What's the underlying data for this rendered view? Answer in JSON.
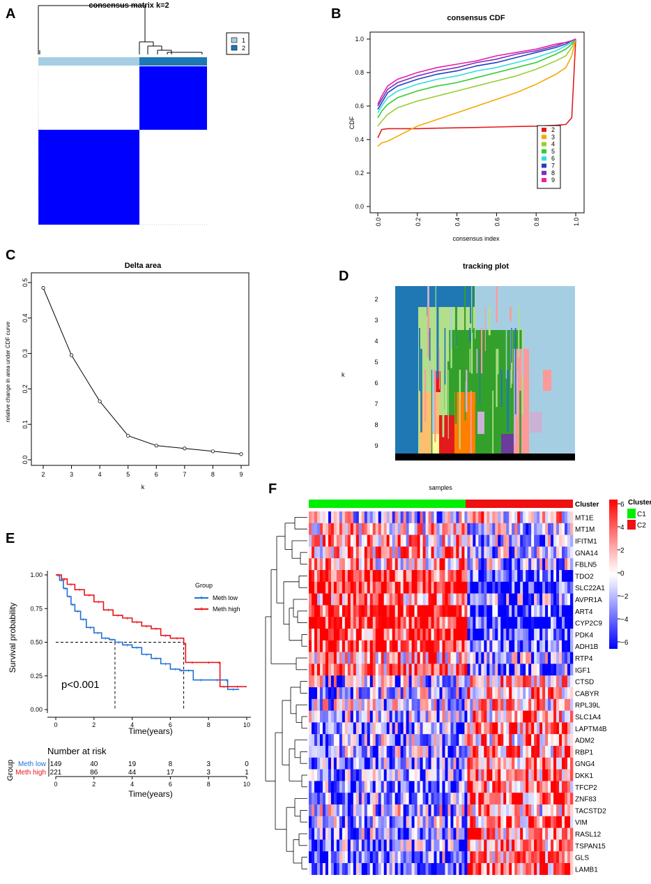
{
  "colors": {
    "consensus_blue": "#0000ff",
    "cluster1": "#a6cee3",
    "cluster2": "#1f78b4",
    "km_low": "#1f6fd6",
    "km_high": "#e8141c",
    "annot_C1": "#00ee00",
    "annot_C2": "#ee1111"
  },
  "panels": {
    "A": {
      "label": "A",
      "title": "consensus matrix k=2",
      "legend": [
        "1",
        "2"
      ]
    },
    "B": {
      "label": "B",
      "chart_data": {
        "type": "line",
        "title": "consensus CDF",
        "xlabel": "consensus index",
        "ylabel": "CDF",
        "xlim": [
          0,
          1
        ],
        "ylim": [
          0,
          1
        ],
        "xticks": [
          "0.0",
          "0.2",
          "0.4",
          "0.6",
          "0.8",
          "1.0"
        ],
        "yticks": [
          "0.0",
          "0.2",
          "0.4",
          "0.6",
          "0.8",
          "1.0"
        ],
        "x": [
          0,
          0.02,
          0.05,
          0.1,
          0.2,
          0.3,
          0.4,
          0.5,
          0.6,
          0.7,
          0.8,
          0.9,
          0.95,
          0.98,
          1.0
        ],
        "series": [
          {
            "name": "2",
            "color": "#e31a1c",
            "values": [
              0.41,
              0.46,
              0.465,
              0.465,
              0.465,
              0.468,
              0.47,
              0.472,
              0.475,
              0.478,
              0.48,
              0.485,
              0.49,
              0.53,
              1.0
            ]
          },
          {
            "name": "3",
            "color": "#f4a800",
            "values": [
              0.36,
              0.38,
              0.39,
              0.42,
              0.48,
              0.52,
              0.56,
              0.6,
              0.64,
              0.68,
              0.73,
              0.79,
              0.83,
              0.9,
              1.0
            ]
          },
          {
            "name": "4",
            "color": "#9acd32",
            "values": [
              0.48,
              0.51,
              0.55,
              0.59,
              0.63,
              0.66,
              0.69,
              0.72,
              0.75,
              0.78,
              0.82,
              0.87,
              0.9,
              0.95,
              1.0
            ]
          },
          {
            "name": "5",
            "color": "#33cc33",
            "values": [
              0.53,
              0.57,
              0.61,
              0.65,
              0.69,
              0.72,
              0.74,
              0.77,
              0.8,
              0.83,
              0.86,
              0.91,
              0.94,
              0.97,
              1.0
            ]
          },
          {
            "name": "6",
            "color": "#33dddd",
            "values": [
              0.56,
              0.6,
              0.65,
              0.69,
              0.73,
              0.76,
              0.78,
              0.81,
              0.83,
              0.86,
              0.89,
              0.93,
              0.96,
              0.98,
              1.0
            ]
          },
          {
            "name": "7",
            "color": "#1f3fbf",
            "values": [
              0.58,
              0.62,
              0.68,
              0.72,
              0.76,
              0.79,
              0.81,
              0.84,
              0.86,
              0.89,
              0.92,
              0.95,
              0.97,
              0.99,
              1.0
            ]
          },
          {
            "name": "8",
            "color": "#7b2fbe",
            "values": [
              0.6,
              0.64,
              0.7,
              0.74,
              0.78,
              0.81,
              0.83,
              0.86,
              0.88,
              0.91,
              0.93,
              0.96,
              0.98,
              0.99,
              1.0
            ]
          },
          {
            "name": "9",
            "color": "#e61fa8",
            "values": [
              0.61,
              0.66,
              0.72,
              0.76,
              0.8,
              0.83,
              0.85,
              0.87,
              0.9,
              0.92,
              0.94,
              0.97,
              0.98,
              0.99,
              1.0
            ]
          }
        ]
      }
    },
    "C": {
      "label": "C",
      "chart_data": {
        "type": "line",
        "title": "Delta area",
        "xlabel": "k",
        "ylabel": "relative change in area under CDF curve",
        "xlim": [
          2,
          9
        ],
        "ylim": [
          0,
          0.5
        ],
        "xticks": [
          "2",
          "3",
          "4",
          "5",
          "6",
          "7",
          "8",
          "9"
        ],
        "yticks": [
          "0.0",
          "0.1",
          "0.2",
          "0.3",
          "0.4",
          "0.5"
        ],
        "x": [
          2,
          3,
          4,
          5,
          6,
          7,
          8,
          9
        ],
        "values": [
          0.485,
          0.295,
          0.165,
          0.068,
          0.04,
          0.032,
          0.024,
          0.016
        ]
      }
    },
    "D": {
      "label": "D",
      "title": "tracking plot",
      "ylabel": "k",
      "rows": [
        "2",
        "3",
        "4",
        "5",
        "6",
        "7",
        "8",
        "9"
      ]
    },
    "E": {
      "label": "E",
      "chart_data": {
        "type": "line",
        "xlabel": "Time(years)",
        "ylabel": "Survival probability",
        "xlim": [
          0,
          10
        ],
        "ylim": [
          0,
          1
        ],
        "xticks": [
          "0",
          "2",
          "4",
          "6",
          "8",
          "10"
        ],
        "yticks": [
          "0.00",
          "0.25",
          "0.50",
          "0.75",
          "1.00"
        ],
        "legend_title": "Group",
        "pvalue": "p<0.001",
        "series": [
          {
            "name": "Meth low",
            "color": "#1f6fd6",
            "x": [
              0,
              0.2,
              0.4,
              0.6,
              0.8,
              1.0,
              1.3,
              1.6,
              2.0,
              2.4,
              2.8,
              3.1,
              3.5,
              4.0,
              4.5,
              5.0,
              5.5,
              6.0,
              6.5,
              6.7,
              7.2,
              8.0,
              8.9,
              9.0,
              9.6
            ],
            "values": [
              1.0,
              0.96,
              0.9,
              0.84,
              0.78,
              0.73,
              0.67,
              0.61,
              0.57,
              0.53,
              0.52,
              0.5,
              0.48,
              0.46,
              0.41,
              0.38,
              0.34,
              0.3,
              0.29,
              0.29,
              0.22,
              0.22,
              0.22,
              0.15,
              0.15
            ]
          },
          {
            "name": "Meth high",
            "color": "#e8141c",
            "x": [
              0,
              0.3,
              0.6,
              1.0,
              1.5,
              2.0,
              2.5,
              3.0,
              3.5,
              4.0,
              4.5,
              5.0,
              5.5,
              6.0,
              6.7,
              6.8,
              7.5,
              8.5,
              8.6,
              9.0,
              10.0
            ],
            "values": [
              1.0,
              0.97,
              0.93,
              0.89,
              0.85,
              0.8,
              0.74,
              0.7,
              0.68,
              0.65,
              0.62,
              0.6,
              0.55,
              0.53,
              0.49,
              0.35,
              0.35,
              0.35,
              0.17,
              0.17,
              0.17
            ]
          }
        ],
        "median_lines": [
          {
            "x": 3.1
          },
          {
            "x": 6.7
          }
        ],
        "risk_table": {
          "title": "Number at risk",
          "group_label": "Group",
          "xlabel": "Time(years)",
          "times": [
            "0",
            "2",
            "4",
            "6",
            "8",
            "10"
          ],
          "rows": [
            {
              "name": "Meth low",
              "counts": [
                "149",
                "40",
                "19",
                "8",
                "3",
                "0"
              ]
            },
            {
              "name": "Meth high",
              "counts": [
                "221",
                "86",
                "44",
                "17",
                "3",
                "1"
              ]
            }
          ]
        }
      }
    },
    "F": {
      "label": "F",
      "chart_data": {
        "type": "heatmap",
        "title": "samples",
        "annotation_label": "Cluster",
        "annotation_groups": [
          "C1",
          "C2"
        ],
        "genes": [
          "MT1E",
          "MT1M",
          "IFITM1",
          "GNA14",
          "FBLN5",
          "TDO2",
          "SLC22A1",
          "AVPR1A",
          "ART4",
          "CYP2C9",
          "PDK4",
          "ADH1B",
          "RTP4",
          "IGF1",
          "CTSD",
          "CABYR",
          "RPL39L",
          "SLC1A4",
          "LAPTM4B",
          "ADM2",
          "RBP1",
          "GNG4",
          "DKK1",
          "TFCP2",
          "ZNF83",
          "TACSTD2",
          "VIM",
          "RASL12",
          "TSPAN15",
          "GLS",
          "LAMB1"
        ],
        "gene_bias_C1": [
          -0.2,
          0.2,
          0.3,
          0.3,
          0.3,
          0.8,
          0.9,
          0.5,
          0.8,
          0.9,
          0.7,
          0.7,
          0.3,
          0.5,
          -0.2,
          -0.3,
          -0.2,
          -0.3,
          -0.5,
          -0.3,
          -0.4,
          -0.4,
          -0.5,
          -0.5,
          -0.5,
          -0.2,
          -0.4,
          -0.4,
          -0.5,
          -0.4,
          -0.6
        ],
        "colorbar_min": -6,
        "colorbar_max": 6,
        "colorbar_ticks": [
          "6",
          "4",
          "2",
          "0",
          "−2",
          "−4",
          "−6"
        ]
      }
    }
  }
}
